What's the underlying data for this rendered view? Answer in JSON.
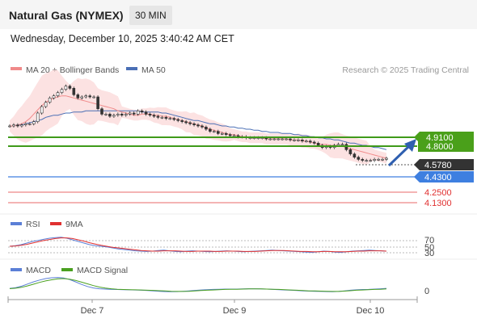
{
  "header": {
    "title": "Natural Gas (NYMEX)",
    "timeframe": "30 MIN",
    "datetime": "Wednesday, December 10, 2025 3:40:42 AM CET"
  },
  "legend": {
    "ma20_label": "MA 20 + Bollinger Bands",
    "ma50_label": "MA 50",
    "copyright": "Research © 2025 Trading Central"
  },
  "colors": {
    "ma20": "#f08a8a",
    "ma50": "#4a6fb5",
    "bollinger": "#fbd8d8",
    "resistance": "#3f9a1a",
    "support": "#3e7fe0",
    "pivot": "#e86a6a",
    "last_price": "#333333",
    "rsi": "#5b7fd6",
    "rsi_9ma": "#e03030",
    "macd": "#5b7fd6",
    "macd_signal": "#4aa020",
    "arrow": "#2f5fb0"
  },
  "price_levels": [
    {
      "value": "4.9100",
      "kind": "resistance"
    },
    {
      "value": "4.8000",
      "kind": "resistance"
    },
    {
      "value": "4.5780",
      "kind": "last"
    },
    {
      "value": "4.4300",
      "kind": "support"
    },
    {
      "value": "4.2500",
      "kind": "pivot"
    },
    {
      "value": "4.1300",
      "kind": "pivot"
    }
  ],
  "rsi": {
    "label": "RSI",
    "ma_label": "9MA",
    "levels": [
      "70",
      "50",
      "30"
    ]
  },
  "macd": {
    "label": "MACD",
    "signal_label": "MACD Signal",
    "zero_label": "0"
  },
  "chart_data": {
    "type": "candlestick",
    "x_ticks": [
      "Dec 7",
      "Dec 9",
      "Dec 10"
    ],
    "price_ylim": [
      4.1,
      5.3
    ],
    "close": [
      4.88,
      4.89,
      4.88,
      4.89,
      4.9,
      4.9,
      4.92,
      5.0,
      5.06,
      5.1,
      5.14,
      5.16,
      5.19,
      5.22,
      5.25,
      5.23,
      5.17,
      5.14,
      5.15,
      5.16,
      5.15,
      5.15,
      5.04,
      4.99,
      4.99,
      4.97,
      4.98,
      4.99,
      4.98,
      4.99,
      5.0,
      4.99,
      5.02,
      5.01,
      4.99,
      4.98,
      4.97,
      4.96,
      4.96,
      4.95,
      4.95,
      4.94,
      4.93,
      4.92,
      4.91,
      4.9,
      4.89,
      4.88,
      4.87,
      4.85,
      4.83,
      4.83,
      4.81,
      4.81,
      4.8,
      4.79,
      4.79,
      4.78,
      4.78,
      4.77,
      4.77,
      4.77,
      4.77,
      4.77,
      4.76,
      4.76,
      4.76,
      4.76,
      4.76,
      4.76,
      4.75,
      4.75,
      4.75,
      4.74,
      4.74,
      4.73,
      4.72,
      4.7,
      4.68,
      4.69,
      4.68,
      4.7,
      4.71,
      4.71,
      4.66,
      4.62,
      4.59,
      4.57,
      4.56,
      4.56,
      4.56,
      4.57,
      4.57,
      4.57,
      4.58
    ],
    "ma20": [
      4.88,
      4.88,
      4.89,
      4.9,
      4.92,
      4.95,
      4.99,
      5.03,
      5.07,
      5.1,
      5.12,
      5.14,
      5.15,
      5.16,
      5.16,
      5.15,
      5.14,
      5.13,
      5.12,
      5.11,
      5.1,
      5.09,
      5.08,
      5.07,
      5.06,
      5.05,
      5.04,
      5.02,
      5.01,
      5.0,
      4.99,
      4.98,
      4.98,
      4.99,
      4.99,
      4.99,
      4.98,
      4.98,
      4.97,
      4.97,
      4.96,
      4.95,
      4.94,
      4.93,
      4.92,
      4.91,
      4.9,
      4.89,
      4.88,
      4.86,
      4.85,
      4.84,
      4.83,
      4.82,
      4.81,
      4.8,
      4.8,
      4.79,
      4.78,
      4.78,
      4.77,
      4.77,
      4.77,
      4.77,
      4.76,
      4.76,
      4.76,
      4.76,
      4.76,
      4.76,
      4.75,
      4.75,
      4.75,
      4.74,
      4.74,
      4.73,
      4.72,
      4.71,
      4.71,
      4.71,
      4.7,
      4.7,
      4.7,
      4.69,
      4.68,
      4.67,
      4.66,
      4.65,
      4.64,
      4.63,
      4.62,
      4.61,
      4.6,
      4.59,
      4.58
    ],
    "ma50": [
      4.88,
      4.88,
      4.89,
      4.89,
      4.9,
      4.91,
      4.92,
      4.93,
      4.94,
      4.96,
      4.97,
      4.98,
      4.98,
      4.99,
      5.0,
      5.0,
      5.01,
      5.01,
      5.01,
      5.02,
      5.02,
      5.02,
      5.02,
      5.02,
      5.02,
      5.02,
      5.02,
      5.02,
      5.02,
      5.02,
      5.02,
      5.02,
      5.02,
      5.01,
      5.01,
      5.01,
      5.01,
      5.01,
      5.0,
      5.0,
      4.99,
      4.98,
      4.97,
      4.96,
      4.95,
      4.94,
      4.93,
      4.93,
      4.92,
      4.91,
      4.9,
      4.9,
      4.89,
      4.88,
      4.88,
      4.87,
      4.87,
      4.86,
      4.86,
      4.85,
      4.85,
      4.84,
      4.84,
      4.83,
      4.83,
      4.82,
      4.82,
      4.82,
      4.81,
      4.81,
      4.81,
      4.8,
      4.8,
      4.79,
      4.79,
      4.78,
      4.78,
      4.77,
      4.77,
      4.76,
      4.76,
      4.75,
      4.75,
      4.74,
      4.73,
      4.72,
      4.72,
      4.71,
      4.7,
      4.7,
      4.69,
      4.68,
      4.68,
      4.67,
      4.66
    ],
    "rsi_ylim": [
      0,
      100
    ],
    "rsi_values": [
      50,
      52,
      55,
      60,
      65,
      68,
      72,
      75,
      77,
      78,
      75,
      70,
      65,
      60,
      55,
      52,
      50,
      48,
      45,
      42,
      40,
      38,
      36,
      35,
      34,
      35,
      37,
      38,
      36,
      34,
      33,
      35,
      36,
      35,
      34,
      33,
      34,
      35,
      36,
      35,
      34,
      33,
      34,
      35,
      36,
      37,
      38,
      37,
      36,
      35,
      34,
      33,
      32,
      31,
      33,
      35,
      34,
      32,
      31,
      33,
      35,
      36,
      37,
      38,
      37,
      36,
      35
    ],
    "rsi_ma_values": [
      50,
      51,
      53,
      56,
      60,
      64,
      68,
      71,
      74,
      76,
      76,
      74,
      70,
      66,
      61,
      57,
      53,
      50,
      47,
      45,
      43,
      41,
      39,
      37,
      36,
      35,
      35,
      36,
      36,
      36,
      35,
      34,
      34,
      35,
      35,
      35,
      34,
      34,
      35,
      35,
      35,
      34,
      34,
      34,
      35,
      36,
      37,
      37,
      37,
      36,
      35,
      34,
      34,
      33,
      33,
      34,
      34,
      33,
      33,
      33,
      34,
      35,
      35,
      36,
      36,
      36,
      35
    ],
    "macd_ylim": [
      -1,
      1
    ],
    "macd_values": [
      0.05,
      0.1,
      0.2,
      0.35,
      0.5,
      0.62,
      0.72,
      0.78,
      0.8,
      0.76,
      0.66,
      0.5,
      0.32,
      0.18,
      0.08,
      0.02,
      0.0,
      -0.02,
      -0.03,
      -0.04,
      -0.05,
      -0.06,
      -0.08,
      -0.1,
      -0.12,
      -0.15,
      -0.17,
      -0.18,
      -0.17,
      -0.15,
      -0.12,
      -0.09,
      -0.06,
      -0.04,
      -0.02,
      -0.01,
      0.0,
      0.0,
      0.0,
      0.01,
      0.02,
      0.02,
      0.01,
      0.0,
      -0.02,
      -0.04,
      -0.06,
      -0.08,
      -0.1,
      -0.12,
      -0.14,
      -0.15,
      -0.16,
      -0.17,
      -0.18,
      -0.16,
      -0.12,
      -0.08,
      -0.05,
      -0.03,
      -0.02,
      0.0,
      0.02,
      0.05
    ],
    "macd_signal_values": [
      0.03,
      0.06,
      0.12,
      0.22,
      0.34,
      0.46,
      0.56,
      0.64,
      0.7,
      0.72,
      0.68,
      0.6,
      0.48,
      0.36,
      0.24,
      0.14,
      0.07,
      0.02,
      -0.01,
      -0.03,
      -0.04,
      -0.05,
      -0.06,
      -0.08,
      -0.09,
      -0.11,
      -0.13,
      -0.15,
      -0.16,
      -0.16,
      -0.15,
      -0.13,
      -0.1,
      -0.08,
      -0.06,
      -0.04,
      -0.02,
      -0.01,
      -0.01,
      0.0,
      0.01,
      0.01,
      0.01,
      0.0,
      -0.01,
      -0.02,
      -0.04,
      -0.06,
      -0.08,
      -0.1,
      -0.12,
      -0.13,
      -0.14,
      -0.15,
      -0.16,
      -0.16,
      -0.14,
      -0.11,
      -0.08,
      -0.06,
      -0.04,
      -0.02,
      -0.01,
      0.01
    ]
  }
}
